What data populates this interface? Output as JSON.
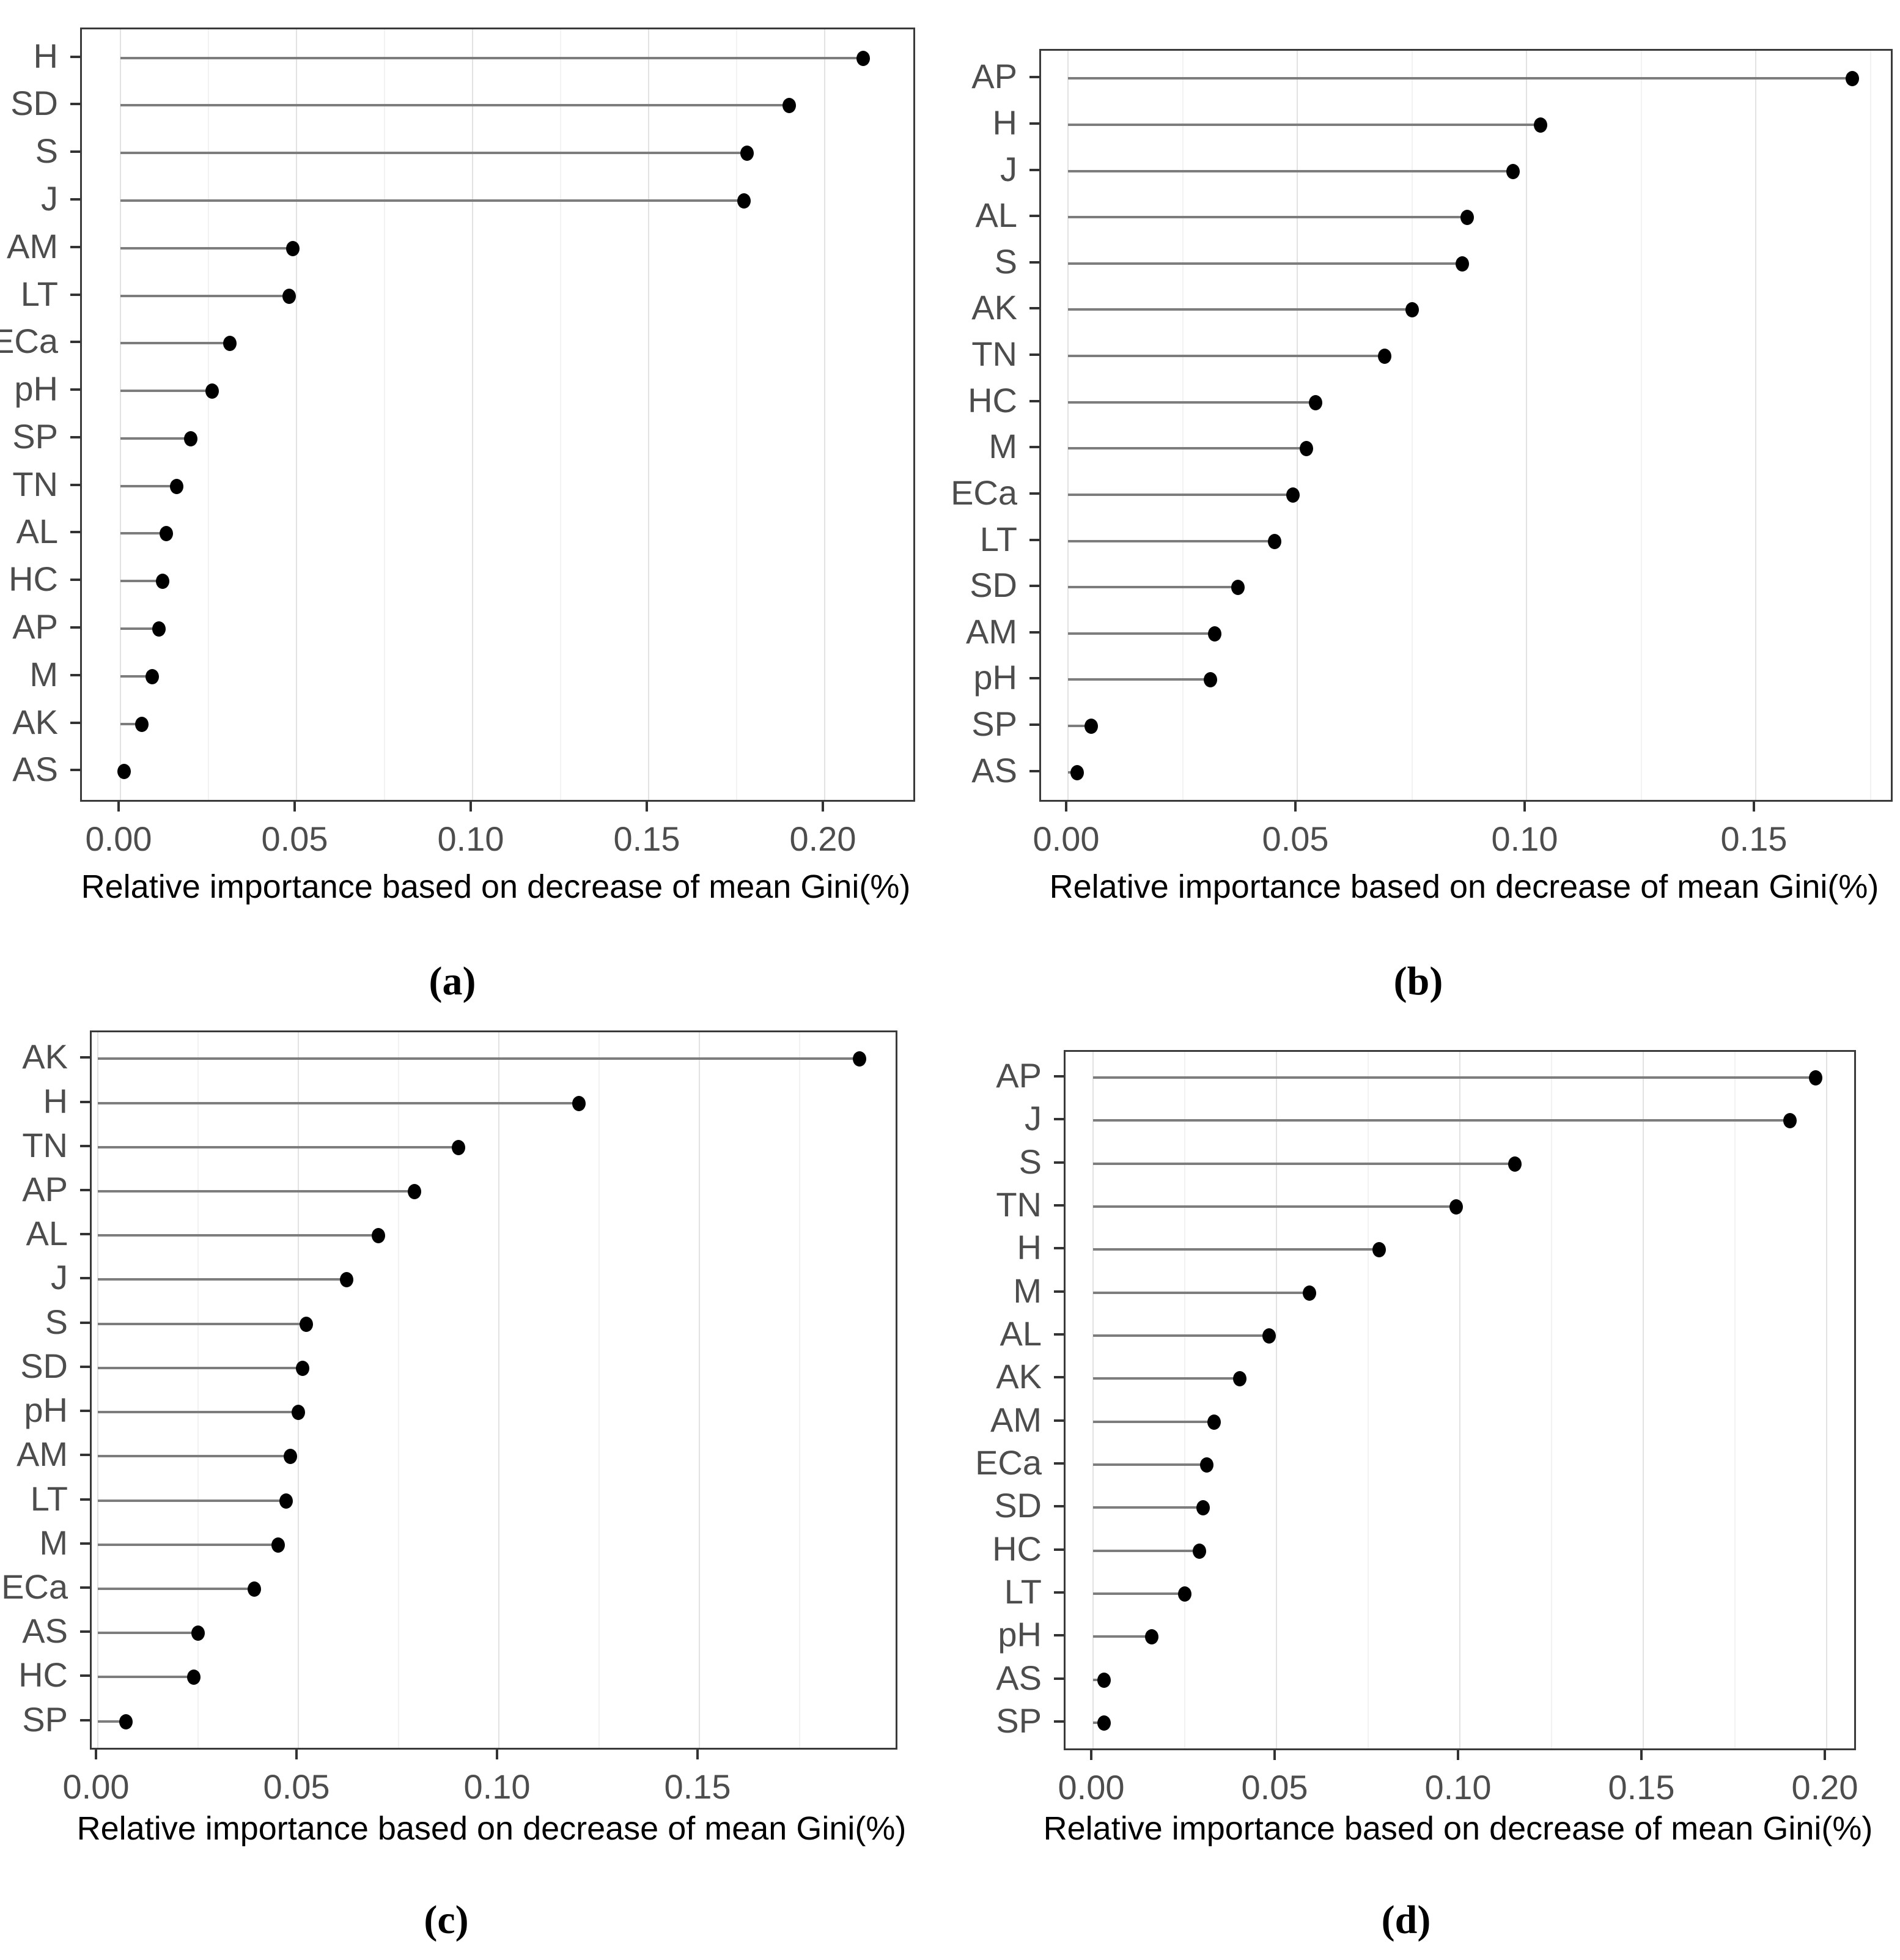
{
  "axis_title": "Relative importance based on decrease of mean Gini(%)",
  "colors": {
    "dot": "#000000",
    "stem": "#7d7d7d",
    "grid_major": "#e2e2e2",
    "grid_minor": "#f2f2f2",
    "axis_text": "#4d4d4d",
    "panel_border": "#3a3a3a",
    "background": "#ffffff"
  },
  "chart_data": [
    {
      "id": "a",
      "caption": "(a)",
      "type": "scatter",
      "style": "lollipop",
      "orientation": "horizontal",
      "title": "",
      "xlabel": "Relative importance based on decrease of mean Gini(%)",
      "ylabel": "",
      "grid": "vertical-only",
      "legend": "none",
      "categories": [
        "H",
        "SD",
        "S",
        "J",
        "AM",
        "LT",
        "ECa",
        "pH",
        "SP",
        "TN",
        "AL",
        "HC",
        "AP",
        "M",
        "AK",
        "AS"
      ],
      "values": [
        0.211,
        0.19,
        0.178,
        0.177,
        0.049,
        0.048,
        0.031,
        0.026,
        0.02,
        0.016,
        0.013,
        0.012,
        0.011,
        0.009,
        0.006,
        0.001
      ],
      "x_ticks": [
        0.0,
        0.05,
        0.1,
        0.15,
        0.2
      ],
      "x_tick_labels": [
        "0.00",
        "0.05",
        "0.10",
        "0.15",
        "0.20"
      ],
      "xlim": [
        -0.011,
        0.225
      ]
    },
    {
      "id": "b",
      "caption": "(b)",
      "type": "scatter",
      "style": "lollipop",
      "orientation": "horizontal",
      "title": "",
      "xlabel": "Relative importance based on decrease of mean Gini(%)",
      "ylabel": "",
      "grid": "vertical-only",
      "legend": "none",
      "categories": [
        "AP",
        "H",
        "J",
        "AL",
        "S",
        "AK",
        "TN",
        "HC",
        "M",
        "ECa",
        "LT",
        "SD",
        "AM",
        "pH",
        "SP",
        "AS"
      ],
      "values": [
        0.171,
        0.103,
        0.097,
        0.087,
        0.086,
        0.075,
        0.069,
        0.054,
        0.052,
        0.049,
        0.045,
        0.037,
        0.032,
        0.031,
        0.005,
        0.002
      ],
      "x_ticks": [
        0.0,
        0.05,
        0.1,
        0.15
      ],
      "x_tick_labels": [
        "0.00",
        "0.05",
        "0.10",
        "0.15"
      ],
      "xlim": [
        -0.006,
        0.179
      ]
    },
    {
      "id": "c",
      "caption": "(c)",
      "type": "scatter",
      "style": "lollipop",
      "orientation": "horizontal",
      "title": "",
      "xlabel": "Relative importance based on decrease of mean Gini(%)",
      "ylabel": "",
      "grid": "vertical-only",
      "legend": "none",
      "categories": [
        "AK",
        "H",
        "TN",
        "AP",
        "AL",
        "J",
        "S",
        "SD",
        "pH",
        "AM",
        "LT",
        "M",
        "ECa",
        "AS",
        "HC",
        "SP"
      ],
      "values": [
        0.19,
        0.12,
        0.09,
        0.079,
        0.07,
        0.062,
        0.052,
        0.051,
        0.05,
        0.048,
        0.047,
        0.045,
        0.039,
        0.025,
        0.024,
        0.007
      ],
      "x_ticks": [
        0.0,
        0.05,
        0.1,
        0.15
      ],
      "x_tick_labels": [
        "0.00",
        "0.05",
        "0.10",
        "0.15"
      ],
      "xlim": [
        -0.002,
        0.199
      ]
    },
    {
      "id": "d",
      "caption": "(d)",
      "type": "scatter",
      "style": "lollipop",
      "orientation": "horizontal",
      "title": "",
      "xlabel": "Relative importance based on decrease of mean Gini(%)",
      "ylabel": "",
      "grid": "vertical-only",
      "legend": "none",
      "categories": [
        "AP",
        "J",
        "S",
        "TN",
        "H",
        "M",
        "AL",
        "AK",
        "AM",
        "ECa",
        "SD",
        "HC",
        "LT",
        "pH",
        "AS",
        "SP"
      ],
      "values": [
        0.197,
        0.19,
        0.115,
        0.099,
        0.078,
        0.059,
        0.048,
        0.04,
        0.033,
        0.031,
        0.03,
        0.029,
        0.025,
        0.016,
        0.003,
        0.003
      ],
      "x_ticks": [
        0.0,
        0.05,
        0.1,
        0.15,
        0.2
      ],
      "x_tick_labels": [
        "0.00",
        "0.05",
        "0.10",
        "0.15",
        "0.20"
      ],
      "xlim": [
        -0.0075,
        0.2075
      ]
    }
  ]
}
